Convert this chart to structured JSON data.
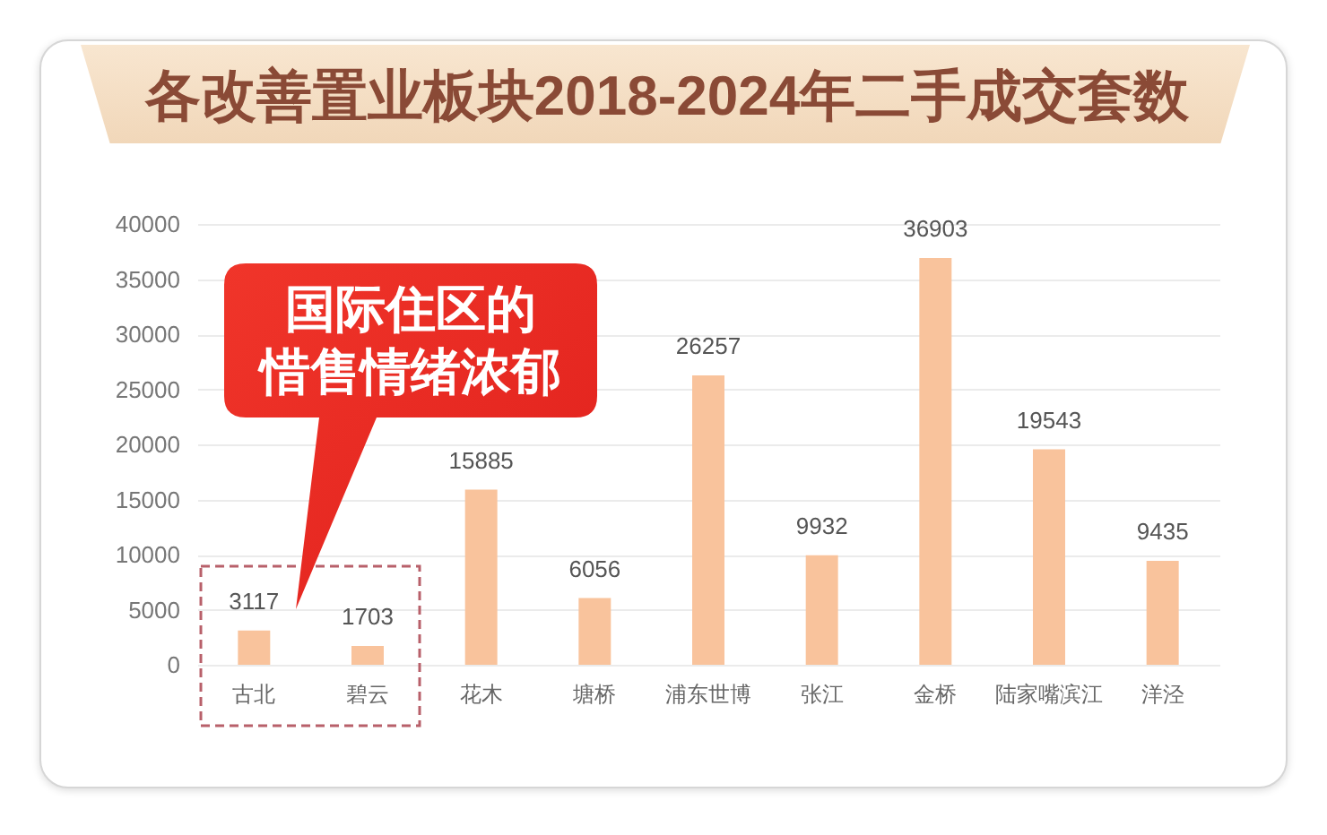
{
  "chart_data": {
    "type": "bar",
    "title": "各改善置业板块2018-2024年二手成交套数",
    "categories": [
      "古北",
      "碧云",
      "花木",
      "塘桥",
      "浦东世博",
      "张江",
      "金桥",
      "陆家嘴滨江",
      "洋泾"
    ],
    "values": [
      3117,
      1703,
      15885,
      6056,
      26257,
      9932,
      36903,
      19543,
      9435
    ],
    "color": "#f9c39c",
    "ylim": [
      0,
      40000
    ],
    "yticks": [
      0,
      5000,
      10000,
      15000,
      20000,
      25000,
      30000,
      35000,
      40000
    ],
    "grid": "y",
    "data_labels": true,
    "annotations": [
      "国际住区的惜售情绪浓郁"
    ]
  }
}
